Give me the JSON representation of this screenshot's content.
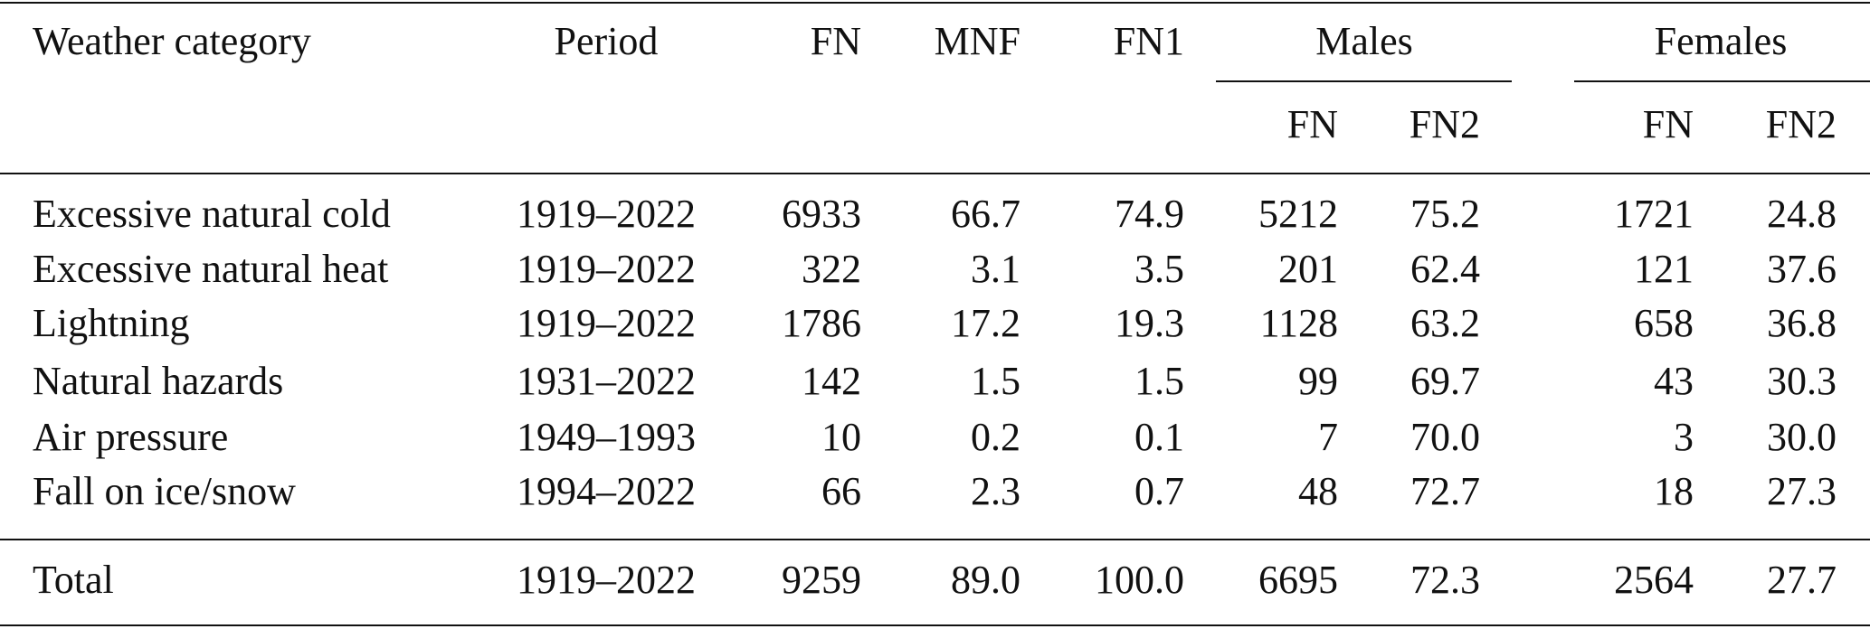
{
  "table": {
    "header": {
      "columns": [
        "Weather category",
        "Period",
        "FN",
        "MNF",
        "FN1"
      ],
      "groups": [
        {
          "label": "Males",
          "columns": [
            "FN",
            "FN2"
          ]
        },
        {
          "label": "Females",
          "columns": [
            "FN",
            "FN2"
          ]
        }
      ]
    },
    "rows": [
      [
        "Excessive natural cold",
        "1919–2022",
        "6933",
        "66.7",
        "74.9",
        "5212",
        "75.2",
        "1721",
        "24.8"
      ],
      [
        "Excessive natural heat",
        "1919–2022",
        "322",
        "3.1",
        "3.5",
        "201",
        "62.4",
        "121",
        "37.6"
      ],
      [
        "Lightning",
        "1919–2022",
        "1786",
        "17.2",
        "19.3",
        "1128",
        "63.2",
        "658",
        "36.8"
      ],
      [
        "Natural hazards",
        "1931–2022",
        "142",
        "1.5",
        "1.5",
        "99",
        "69.7",
        "43",
        "30.3"
      ],
      [
        "Air pressure",
        "1949–1993",
        "10",
        "0.2",
        "0.1",
        "7",
        "70.0",
        "3",
        "30.0"
      ],
      [
        "Fall on ice/snow",
        "1994–2022",
        "66",
        "2.3",
        "0.7",
        "48",
        "72.7",
        "18",
        "27.3"
      ]
    ],
    "total": [
      "Total",
      "1919–2022",
      "9259",
      "89.0",
      "100.0",
      "6695",
      "72.3",
      "2564",
      "27.7"
    ]
  }
}
